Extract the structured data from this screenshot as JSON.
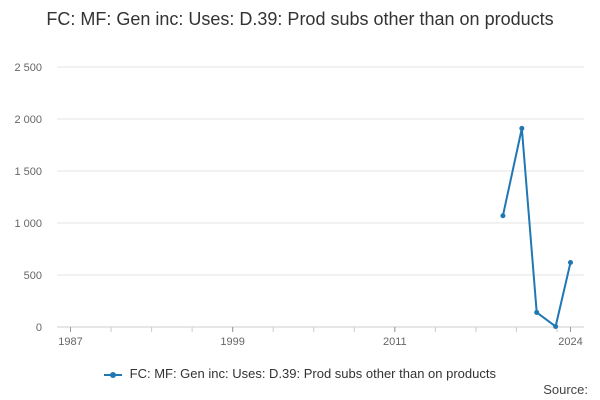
{
  "colors": {
    "series": "#1f77b4",
    "grid": "#e6e6e6",
    "axis": "#cccccc"
  },
  "source_label": "Source:",
  "chart_data": {
    "type": "line",
    "title": "FC: MF: Gen inc: Uses: D.39: Prod subs other than on products",
    "xlabel": "",
    "ylabel": "",
    "xlim": [
      1986,
      2025
    ],
    "ylim": [
      0,
      2500
    ],
    "x_ticks": [
      1987,
      1999,
      2011,
      2024
    ],
    "x_tick_labels": [
      "1987",
      "1999",
      "2011",
      "2024"
    ],
    "y_ticks": [
      0,
      500,
      1000,
      1500,
      2000,
      2500
    ],
    "y_tick_labels": [
      "0",
      "500",
      "1 000",
      "1 500",
      "2 000",
      "2 500"
    ],
    "grid": true,
    "legend": "bottom",
    "series": [
      {
        "name": "FC: MF: Gen inc: Uses: D.39: Prod subs other than on products",
        "x": [
          2019,
          2020.4,
          2021.5,
          2022.9,
          2024
        ],
        "y": [
          1070,
          1910,
          140,
          5,
          620
        ]
      }
    ]
  }
}
